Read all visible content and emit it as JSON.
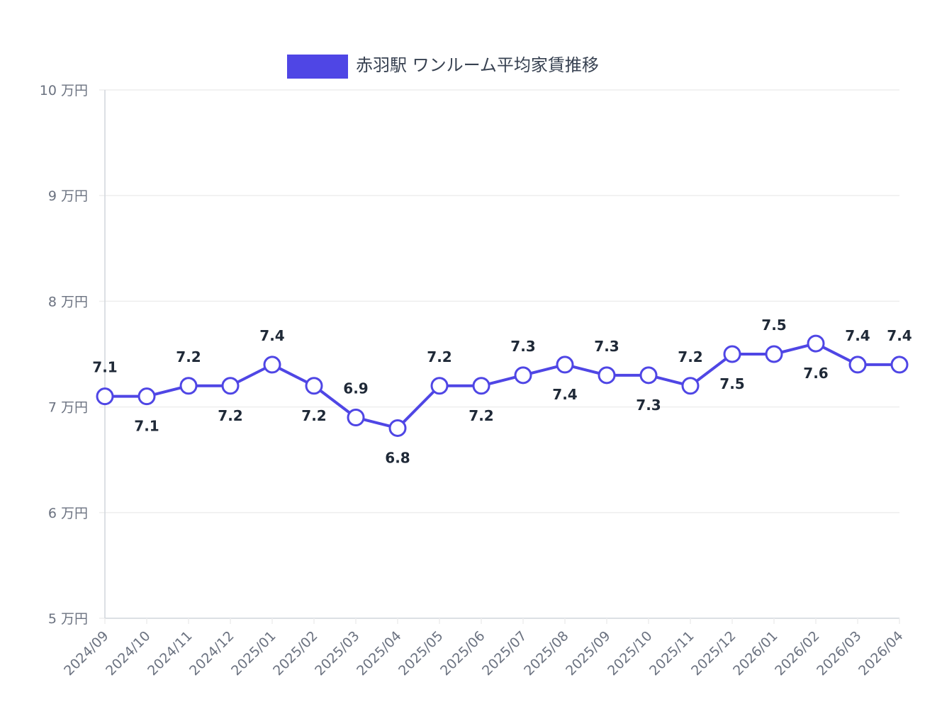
{
  "chart_data": {
    "type": "line",
    "categories": [
      "2024/09",
      "2024/10",
      "2024/11",
      "2024/12",
      "2025/01",
      "2025/02",
      "2025/03",
      "2025/04",
      "2025/05",
      "2025/06",
      "2025/07",
      "2025/08",
      "2025/09",
      "2025/10",
      "2025/11",
      "2025/12",
      "2026/01",
      "2026/02",
      "2026/03",
      "2026/04"
    ],
    "series": [
      {
        "name": "赤羽駅 ワンルーム平均家賃推移",
        "values": [
          7.1,
          7.1,
          7.2,
          7.2,
          7.4,
          7.2,
          6.9,
          6.8,
          7.2,
          7.2,
          7.3,
          7.4,
          7.3,
          7.3,
          7.2,
          7.5,
          7.5,
          7.6,
          7.4,
          7.4
        ],
        "color": "#4f46e5"
      }
    ],
    "ylim": [
      5,
      10
    ],
    "yticks": [
      5,
      6,
      7,
      8,
      9,
      10
    ],
    "ytick_suffix": " 万円",
    "data_label_positions": [
      "above",
      "below",
      "above",
      "below",
      "above",
      "below",
      "above",
      "below",
      "above",
      "below",
      "above",
      "below",
      "above",
      "below",
      "above",
      "below",
      "above",
      "below",
      "above",
      "above"
    ],
    "grid": true,
    "legend": "top-center",
    "colors": {
      "line": "#4f46e5",
      "point_fill": "#ffffff",
      "grid": "#eeeeee",
      "axis": "#d1d5db",
      "tick_text": "#6b7280",
      "label_text": "#1f2937"
    }
  }
}
